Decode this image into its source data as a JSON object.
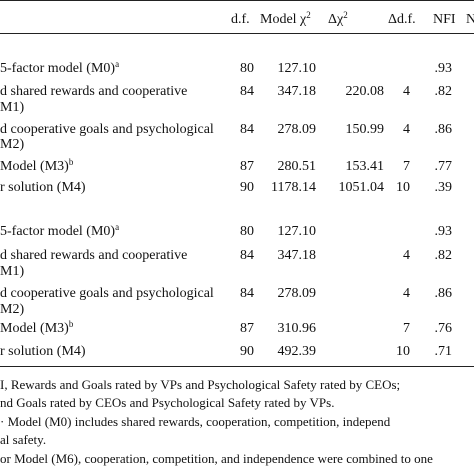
{
  "header": {
    "df": "d.f.",
    "model_chi": "Model χ",
    "model_chi_sup": "2",
    "delta_chi": "Δχ",
    "delta_chi_sup": "2",
    "delta_df": "Δd.f.",
    "nfi": "NFI",
    "cut": "N"
  },
  "panel1": [
    {
      "label": "5-factor model (M0)",
      "sup": "a",
      "df": "80",
      "chi": "127.10",
      "dchi": "",
      "ddf": "",
      "nfi": ".93"
    },
    {
      "label": "d shared rewards and cooperative",
      "sup": "",
      "df": "84",
      "chi": "347.18",
      "dchi": "220.08",
      "ddf": "4",
      "nfi": ".82"
    },
    {
      "label": "M1)",
      "sup": "",
      "df": "",
      "chi": "",
      "dchi": "",
      "ddf": "",
      "nfi": ""
    },
    {
      "label": "d cooperative goals and psychological",
      "sup": "",
      "df": "84",
      "chi": "278.09",
      "dchi": "150.99",
      "ddf": "4",
      "nfi": ".86"
    },
    {
      "label": "M2)",
      "sup": "",
      "df": "",
      "chi": "",
      "dchi": "",
      "ddf": "",
      "nfi": ""
    },
    {
      "label": "Model (M3)",
      "sup": "b",
      "df": "87",
      "chi": "280.51",
      "dchi": "153.41",
      "ddf": "7",
      "nfi": ".77"
    },
    {
      "label": "r solution (M4)",
      "sup": "",
      "df": "90",
      "chi": "1178.14",
      "dchi": "1051.04",
      "ddf": "10",
      "nfi": ".39"
    }
  ],
  "panel2": [
    {
      "label": "5-factor model (M0)",
      "sup": "a",
      "df": "80",
      "chi": "127.10",
      "dchi": "",
      "ddf": "",
      "nfi": ".93"
    },
    {
      "label": "d shared rewards and cooperative",
      "sup": "",
      "df": "84",
      "chi": "347.18",
      "dchi": "",
      "ddf": "4",
      "nfi": ".82"
    },
    {
      "label": "M1)",
      "sup": "",
      "df": "",
      "chi": "",
      "dchi": "",
      "ddf": "",
      "nfi": ""
    },
    {
      "label": "d cooperative goals and psychological",
      "sup": "",
      "df": "84",
      "chi": "278.09",
      "dchi": "",
      "ddf": "4",
      "nfi": ".86"
    },
    {
      "label": "M2)",
      "sup": "",
      "df": "",
      "chi": "",
      "dchi": "",
      "ddf": "",
      "nfi": ""
    },
    {
      "label": "Model (M3)",
      "sup": "b",
      "df": "87",
      "chi": "310.96",
      "dchi": "",
      "ddf": "7",
      "nfi": ".76"
    },
    {
      "label": "r solution (M4)",
      "sup": "",
      "df": "90",
      "chi": "492.39",
      "dchi": "",
      "ddf": "10",
      "nfi": ".71"
    }
  ],
  "notes": [
    "I, Rewards and Goals rated by VPs and Psychological Safety rated by CEOs;",
    "nd Goals rated by CEOs and Psychological Safety rated by VPs.",
    "· Model (M0) includes shared rewards, cooperation, competition, independ",
    "al safety.",
    "or Model (M6), cooperation, competition, and independence were combined to one"
  ]
}
